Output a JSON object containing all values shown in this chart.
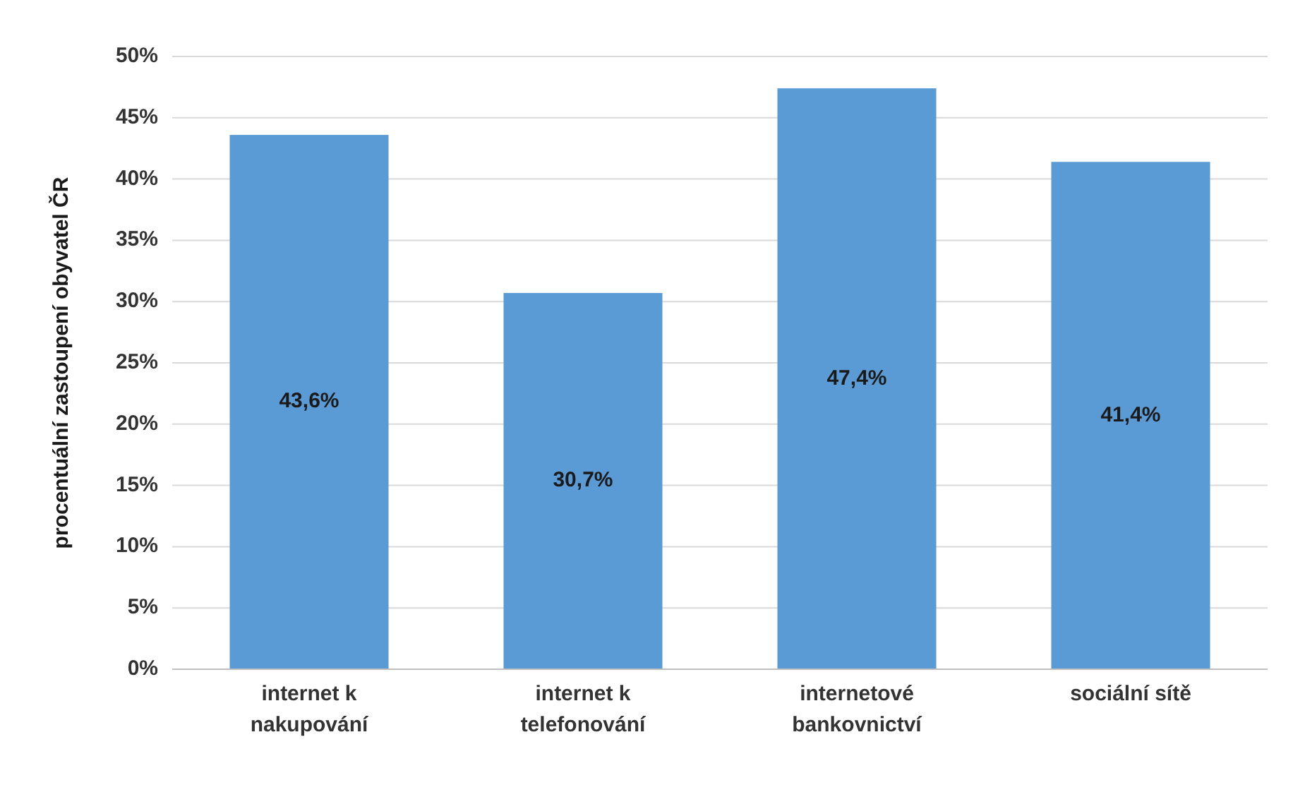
{
  "chart_data": {
    "type": "bar",
    "ylabel": "procentuální zastoupení obyvatel ČR",
    "categories": [
      "internet k nakupování",
      "internet k telefonování",
      "internetové bankovnictví",
      "sociální sítě"
    ],
    "values": [
      43.6,
      30.7,
      47.4,
      41.4
    ],
    "value_labels": [
      "43,6%",
      "30,7%",
      "47,4%",
      "41,4%"
    ],
    "color": "#5b9bd5",
    "ylim": [
      0,
      50
    ],
    "yticks": [
      {
        "value": 0,
        "label": "0%"
      },
      {
        "value": 5,
        "label": "5%"
      },
      {
        "value": 10,
        "label": "10%"
      },
      {
        "value": 15,
        "label": "15%"
      },
      {
        "value": 20,
        "label": "20%"
      },
      {
        "value": 25,
        "label": "25%"
      },
      {
        "value": 30,
        "label": "30%"
      },
      {
        "value": 35,
        "label": "35%"
      },
      {
        "value": 40,
        "label": "40%"
      },
      {
        "value": 45,
        "label": "45%"
      },
      {
        "value": 50,
        "label": "50%"
      }
    ],
    "grid": "y"
  }
}
